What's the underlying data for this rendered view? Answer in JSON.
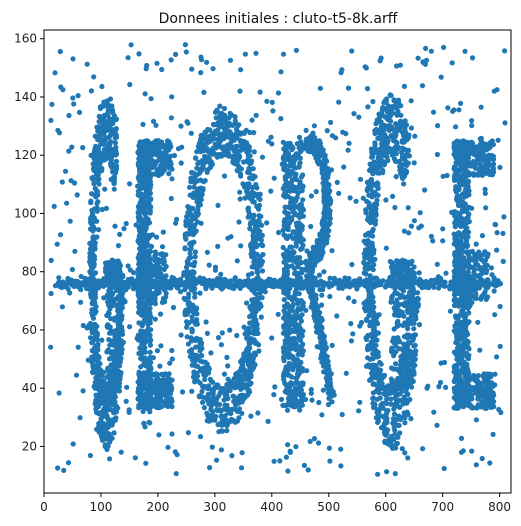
{
  "chart_data": {
    "type": "scatter",
    "title": "Donnees initiales : cluto-t5-8k.arff",
    "xlabel": "",
    "ylabel": "",
    "xlim": [
      0,
      820
    ],
    "ylim": [
      4,
      163
    ],
    "xticks": [
      0,
      100,
      200,
      300,
      400,
      500,
      600,
      700,
      800
    ],
    "yticks": [
      20,
      40,
      60,
      80,
      100,
      120,
      140,
      160
    ],
    "grid": false,
    "marker_color": "#1f77b4",
    "point_count": 8000,
    "structures": [
      {
        "name": "G",
        "kind": "letter-G",
        "x_range": [
          85,
          135
        ],
        "y_range": [
          30,
          130
        ]
      },
      {
        "name": "E",
        "kind": "letter-E",
        "x_range": [
          165,
          225
        ],
        "y_range": [
          33,
          125
        ]
      },
      {
        "name": "O",
        "kind": "letter-O",
        "x_range": [
          245,
          385
        ],
        "y_range": [
          33,
          128
        ]
      },
      {
        "name": "R",
        "kind": "letter-R",
        "x_range": [
          420,
          510
        ],
        "y_range": [
          33,
          125
        ]
      },
      {
        "name": "G",
        "kind": "letter-G",
        "x_range": [
          570,
          650
        ],
        "y_range": [
          30,
          130
        ]
      },
      {
        "name": "E",
        "kind": "letter-E",
        "x_range": [
          720,
          790
        ],
        "y_range": [
          33,
          125
        ]
      },
      {
        "name": "bar",
        "kind": "horizontal-band",
        "x_range": [
          20,
          800
        ],
        "y_center": 76
      }
    ],
    "noise": {
      "x_range": [
        10,
        810
      ],
      "y_range": [
        10,
        158
      ]
    }
  }
}
